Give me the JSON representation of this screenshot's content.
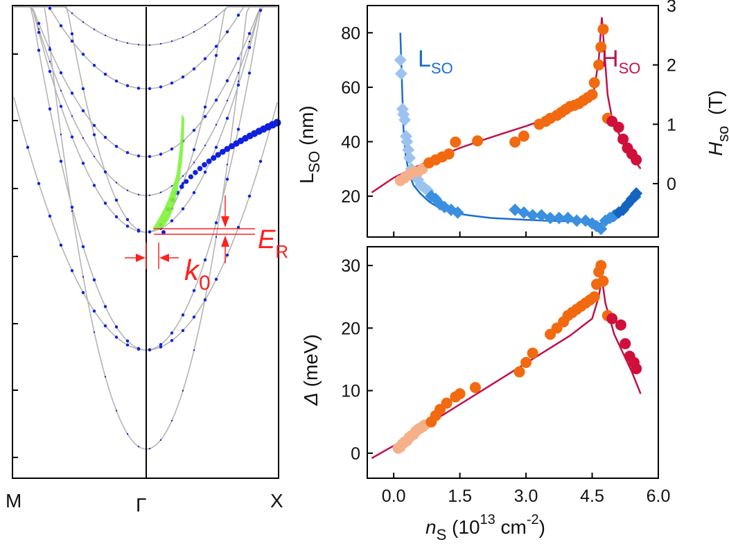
{
  "chart_data": [
    {
      "type": "line",
      "panel": "band-structure",
      "xlabels": [
        "M",
        "Γ",
        "X"
      ],
      "annotations": {
        "k0_label": "k",
        "k0_sub": "0",
        "er_label": "E",
        "er_sub": "R"
      },
      "colors": {
        "bands": "#b4b4b4",
        "dots": "#1020e0",
        "highlight": "#7ff33a",
        "marker": "#ff0000",
        "axis": "#000000"
      }
    },
    {
      "type": "scatter",
      "panel": "Lso-Hso-vs-ns",
      "ylabel_left_main": "L",
      "ylabel_left_sub": "SO",
      "ylabel_left_unit": " (nm)",
      "ylabel_right_main": "H",
      "ylabel_right_sub": "so",
      "ylabel_right_unit": "  (T)",
      "ylim_left": [
        5,
        90
      ],
      "ylim_right": [
        -0.9,
        3.0
      ],
      "yticks_left": [
        20,
        40,
        60,
        80
      ],
      "yticks_right": [
        0,
        1,
        2,
        3
      ],
      "xlim": [
        -0.6,
        6.0
      ],
      "series_labels": {
        "L": {
          "main": "L",
          "sub": "SO"
        },
        "H": {
          "main": "H",
          "sub": "SO"
        }
      },
      "series": [
        {
          "name": "LSO",
          "axis": "left",
          "marker": "diamond",
          "x": [
            0.15,
            0.17,
            0.2,
            0.22,
            0.25,
            0.28,
            0.3,
            0.33,
            0.36,
            0.4,
            0.45,
            0.5,
            0.55,
            0.62,
            0.7,
            0.78,
            0.85,
            0.95,
            1.05,
            1.15,
            1.3,
            1.45,
            2.75,
            2.95,
            3.15,
            3.35,
            3.55,
            3.75,
            3.95,
            4.15,
            4.35,
            4.5,
            4.6,
            4.7,
            4.8,
            4.9,
            5.0,
            5.1,
            5.2,
            5.3,
            5.4,
            5.5
          ],
          "y": [
            70,
            65,
            52,
            50,
            48,
            42,
            40,
            37,
            34,
            30,
            28,
            27,
            26,
            24,
            23,
            22,
            20,
            19,
            17,
            16,
            15,
            14,
            15,
            14,
            13,
            13,
            12,
            12,
            12,
            11,
            11,
            10,
            9,
            8,
            11,
            12,
            13,
            14,
            15,
            17,
            19,
            21
          ]
        },
        {
          "name": "HSO",
          "axis": "right",
          "marker": "circle",
          "x": [
            0.15,
            0.25,
            0.35,
            0.45,
            0.55,
            0.65,
            0.8,
            0.95,
            1.1,
            1.25,
            1.4,
            1.9,
            2.75,
            2.95,
            3.3,
            3.45,
            3.55,
            3.7,
            3.8,
            3.9,
            4.0,
            4.1,
            4.2,
            4.3,
            4.4,
            4.5,
            4.55,
            4.65,
            4.7,
            4.75,
            4.85,
            4.95,
            5.1,
            5.2,
            5.3,
            5.4,
            5.5
          ],
          "y": [
            0.05,
            0.1,
            0.15,
            0.2,
            0.2,
            0.25,
            0.35,
            0.4,
            0.45,
            0.5,
            0.7,
            0.72,
            0.7,
            0.8,
            1.0,
            1.05,
            1.1,
            1.15,
            1.2,
            1.25,
            1.3,
            1.32,
            1.35,
            1.4,
            1.45,
            1.5,
            1.7,
            2.0,
            2.3,
            2.6,
            1.1,
            1.05,
            0.95,
            0.75,
            0.6,
            0.5,
            0.4
          ]
        }
      ],
      "fits": [
        {
          "name": "LSO fit",
          "axis": "left",
          "x": [
            0.15,
            0.18,
            0.22,
            0.27,
            0.35,
            0.45,
            0.6,
            0.8,
            1.0,
            1.3,
            1.7,
            2.2,
            2.8,
            3.4,
            4.0,
            4.4,
            4.65,
            4.8,
            5.0,
            5.2,
            5.4,
            5.6
          ],
          "y": [
            80,
            65,
            45,
            35,
            28,
            24,
            21,
            18,
            16,
            14,
            13,
            12,
            11.5,
            11,
            10.8,
            10.5,
            10,
            10,
            11,
            14,
            17,
            20
          ]
        },
        {
          "name": "HSO fit",
          "axis": "right",
          "x": [
            -0.5,
            0.0,
            0.5,
            1.0,
            1.5,
            2.0,
            2.5,
            3.0,
            3.5,
            4.0,
            4.4,
            4.55,
            4.65,
            4.72,
            4.78,
            4.85,
            4.95,
            5.1,
            5.3,
            5.5,
            5.6
          ],
          "y": [
            -0.15,
            0.1,
            0.28,
            0.45,
            0.6,
            0.73,
            0.85,
            0.97,
            1.1,
            1.25,
            1.4,
            1.6,
            2.1,
            2.8,
            2.2,
            1.5,
            1.1,
            0.85,
            0.55,
            0.35,
            0.25
          ]
        }
      ],
      "colors": {
        "lso_light": "#9cc3f0",
        "lso": "#3a8fe0",
        "lso_dark": "#1565c0",
        "lso_fit": "#1a6ecb",
        "hso_light": "#f5b08a",
        "hso": "#f26a10",
        "hso_dark": "#d0103a",
        "hso_fit": "#c0104a"
      }
    },
    {
      "type": "scatter",
      "panel": "gap-vs-ns",
      "ylabel_main": "Δ",
      "ylabel_unit": " (meV)",
      "xlabel_main": "n",
      "xlabel_sub": "S",
      "xlabel_unit": " (10",
      "xlabel_exp": "13",
      "xlabel_unit2": " cm",
      "xlabel_exp2": "-2",
      "xlabel_close": ")",
      "xlim": [
        -0.6,
        6.0
      ],
      "ylim": [
        -4,
        33
      ],
      "xticks": [
        "0.0",
        "1.5",
        "3.0",
        "4.5",
        "6.0"
      ],
      "xtick_values": [
        0.0,
        1.5,
        3.0,
        4.5,
        6.0
      ],
      "yticks": [
        0,
        10,
        20,
        30
      ],
      "series": [
        {
          "name": "Δ",
          "marker": "circle",
          "x": [
            0.1,
            0.15,
            0.2,
            0.25,
            0.3,
            0.35,
            0.4,
            0.45,
            0.5,
            0.55,
            0.6,
            0.65,
            0.7,
            0.85,
            0.95,
            1.05,
            1.2,
            1.4,
            1.5,
            1.85,
            2.85,
            3.0,
            3.15,
            3.55,
            3.7,
            3.85,
            3.95,
            4.05,
            4.15,
            4.25,
            4.35,
            4.45,
            4.55,
            4.6,
            4.65,
            4.7,
            4.75,
            4.85,
            4.95,
            5.15,
            5.25,
            5.35,
            5.45,
            5.5
          ],
          "y": [
            0.8,
            1.0,
            1.5,
            1.8,
            2.0,
            2.5,
            2.8,
            3.0,
            3.5,
            3.8,
            4.0,
            4.2,
            4.5,
            5.0,
            6.0,
            7.0,
            8.0,
            9.0,
            9.5,
            10.5,
            13,
            14.5,
            16,
            19,
            20,
            21,
            22,
            22.5,
            23,
            23.5,
            24,
            24.5,
            25,
            27,
            29,
            30,
            27.5,
            22,
            21.5,
            20.5,
            17.5,
            15.5,
            14.5,
            13.5
          ]
        }
      ],
      "fit": {
        "x": [
          -0.5,
          0.0,
          1.0,
          2.0,
          3.0,
          4.0,
          4.5,
          4.65,
          4.72,
          4.8,
          5.0,
          5.2,
          5.4,
          5.6
        ],
        "y": [
          -0.8,
          1.2,
          5.6,
          10,
          14.4,
          18.8,
          21.5,
          25,
          28,
          24,
          19,
          16,
          13,
          9.5
        ]
      },
      "colors": {
        "light": "#f5b08a",
        "mid": "#f26a10",
        "dark": "#d0103a",
        "fit": "#c0104a"
      }
    }
  ]
}
